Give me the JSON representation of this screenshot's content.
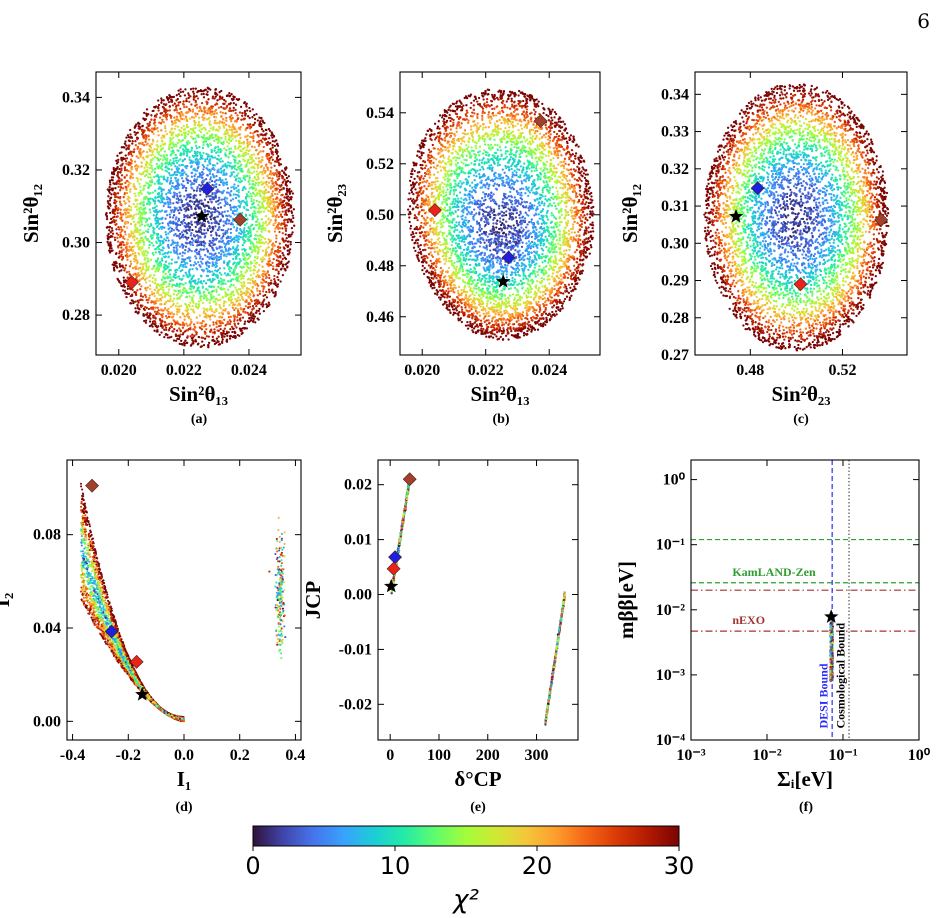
{
  "page_number": "6",
  "colorbar": {
    "label": "χ²",
    "min": 0,
    "max": 30,
    "ticks": [
      "0",
      "10",
      "20",
      "30"
    ],
    "colormap": [
      "#30123b",
      "#4145ab",
      "#4675ed",
      "#39a2fc",
      "#1bcfd4",
      "#24eca6",
      "#61fc6c",
      "#a4fc3b",
      "#d1e834",
      "#f3c63a",
      "#fe9b2d",
      "#f36315",
      "#d93806",
      "#b11901",
      "#7a0403"
    ]
  },
  "markers": {
    "star_color": "#000000",
    "blue_diamond": "#1f1fe0",
    "red_diamond": "#e8231b",
    "brown_diamond": "#a0412d"
  },
  "chart_data": [
    {
      "type": "scatter",
      "panel": "(a)",
      "xlabel": "Sin²θ₁₃",
      "ylabel": "Sin²θ₁₂",
      "xlim": [
        0.0193,
        0.0256
      ],
      "ylim": [
        0.269,
        0.347
      ],
      "xticks": [
        "0.020",
        "0.022",
        "0.024"
      ],
      "yticks": [
        "0.28",
        "0.30",
        "0.32",
        "0.34"
      ],
      "cloud": {
        "shape": "ellipse",
        "center": [
          0.0225,
          0.307
        ],
        "radius": [
          0.0029,
          0.036
        ]
      },
      "points": [
        {
          "marker": "star",
          "x": 0.02255,
          "y": 0.3072
        },
        {
          "marker": "blue",
          "x": 0.02272,
          "y": 0.3148
        },
        {
          "marker": "red",
          "x": 0.0204,
          "y": 0.289
        },
        {
          "marker": "brown",
          "x": 0.02373,
          "y": 0.3063
        }
      ]
    },
    {
      "type": "scatter",
      "panel": "(b)",
      "xlabel": "Sin²θ₁₃",
      "ylabel": "Sin²θ₂₃",
      "xlim": [
        0.0193,
        0.0256
      ],
      "ylim": [
        0.445,
        0.556
      ],
      "xticks": [
        "0.020",
        "0.022",
        "0.024"
      ],
      "yticks": [
        "0.46",
        "0.48",
        "0.50",
        "0.52",
        "0.54"
      ],
      "cloud": {
        "shape": "blob",
        "center": [
          0.0225,
          0.495
        ],
        "radius": [
          0.0029,
          0.052
        ]
      },
      "points": [
        {
          "marker": "star",
          "x": 0.02255,
          "y": 0.4738
        },
        {
          "marker": "blue",
          "x": 0.02272,
          "y": 0.4832
        },
        {
          "marker": "red",
          "x": 0.0204,
          "y": 0.5018
        },
        {
          "marker": "brown",
          "x": 0.02373,
          "y": 0.5368
        }
      ]
    },
    {
      "type": "scatter",
      "panel": "(c)",
      "xlabel": "Sin²θ₂₃",
      "ylabel": "Sin²θ₁₂",
      "xlim": [
        0.456,
        0.548
      ],
      "ylim": [
        0.27,
        0.346
      ],
      "xticks": [
        "0.48",
        "0.52"
      ],
      "yticks": [
        "0.27",
        "0.28",
        "0.29",
        "0.30",
        "0.31",
        "0.32",
        "0.33",
        "0.34"
      ],
      "cloud": {
        "shape": "ellipse",
        "center": [
          0.5,
          0.307
        ],
        "radius": [
          0.04,
          0.036
        ]
      },
      "points": [
        {
          "marker": "star",
          "x": 0.4738,
          "y": 0.3072
        },
        {
          "marker": "blue",
          "x": 0.4832,
          "y": 0.3148
        },
        {
          "marker": "red",
          "x": 0.5018,
          "y": 0.289
        },
        {
          "marker": "brown",
          "x": 0.5368,
          "y": 0.3063
        }
      ]
    },
    {
      "type": "scatter",
      "panel": "(d)",
      "xlabel": "I₁",
      "ylabel": "I₂",
      "xlim": [
        -0.42,
        0.42
      ],
      "ylim": [
        -0.008,
        0.112
      ],
      "xticks": [
        "-0.4",
        "-0.2",
        "0.0",
        "0.2",
        "0.4"
      ],
      "yticks": [
        "0.00",
        "0.04",
        "0.08"
      ],
      "cloud": {
        "shape": "crescent",
        "center": [
          -0.2,
          0.05
        ],
        "radius": [
          0.2,
          0.05
        ]
      },
      "points": [
        {
          "marker": "star",
          "x": -0.15,
          "y": 0.0115
        },
        {
          "marker": "blue",
          "x": -0.26,
          "y": 0.0385
        },
        {
          "marker": "red",
          "x": -0.17,
          "y": 0.0255
        },
        {
          "marker": "brown",
          "x": -0.33,
          "y": 0.101
        }
      ]
    },
    {
      "type": "scatter",
      "panel": "(e)",
      "xlabel": "δ°CP",
      "ylabel": "JCP",
      "xlim": [
        -25,
        385
      ],
      "ylim": [
        -0.0265,
        0.0245
      ],
      "xticks": [
        "0",
        "100",
        "200",
        "300"
      ],
      "yticks": [
        "-0.02",
        "-0.01",
        "0.00",
        "0.01",
        "0.02"
      ],
      "cloud": {
        "shape": "streaks",
        "center": [
          20,
          0.01
        ],
        "radius": [
          20,
          0.01
        ]
      },
      "points": [
        {
          "marker": "star",
          "x": 2,
          "y": 0.0015
        },
        {
          "marker": "blue",
          "x": 10,
          "y": 0.0068
        },
        {
          "marker": "red",
          "x": 7,
          "y": 0.0047
        },
        {
          "marker": "brown",
          "x": 40,
          "y": 0.021
        }
      ]
    },
    {
      "type": "scatter",
      "panel": "(f)",
      "xlabel": "Σᵢ[eV]",
      "ylabel": "mββ[eV]",
      "xscale": "log",
      "yscale": "log",
      "xlim": [
        0.001,
        1
      ],
      "ylim": [
        0.0001,
        2
      ],
      "xticks": [
        "10⁻³",
        "10⁻²",
        "10⁻¹",
        "10⁰"
      ],
      "yticks": [
        "10⁻⁴",
        "10⁻³",
        "10⁻²",
        "10⁻¹",
        "10⁰"
      ],
      "cloud": {
        "shape": "column",
        "center": [
          0.07,
          0.002
        ],
        "radius": [
          0.004,
          0.002
        ]
      },
      "points": [
        {
          "marker": "star",
          "x": 0.07,
          "y": 0.0078
        }
      ],
      "hlines": [
        {
          "y": 0.12,
          "color": "#2e9e2e",
          "style": "dashed"
        },
        {
          "y": 0.026,
          "color": "#2e9e2e",
          "style": "dashed"
        },
        {
          "y": 0.02,
          "color": "#a33434",
          "style": "dashdot"
        },
        {
          "y": 0.0047,
          "color": "#a33434",
          "style": "dashdot"
        }
      ],
      "vlines": [
        {
          "x": 0.072,
          "color": "#2b2bff",
          "style": "dashed"
        },
        {
          "x": 0.12,
          "color": "#555555",
          "style": "dotted"
        }
      ],
      "annotations": [
        {
          "text": "KamLAND-Zen",
          "x": 0.0035,
          "y": 0.033,
          "color": "#2e9e2e",
          "rotate": 0
        },
        {
          "text": "nEXO",
          "x": 0.0035,
          "y": 0.006,
          "color": "#a33434",
          "rotate": 0
        },
        {
          "text": "DESI Bound",
          "x": 0.063,
          "y": 0.00015,
          "color": "#2b2bff",
          "rotate": -90
        },
        {
          "text": "Cosmological Bound",
          "x": 0.105,
          "y": 0.00015,
          "color": "#000000",
          "rotate": -90
        }
      ]
    }
  ]
}
